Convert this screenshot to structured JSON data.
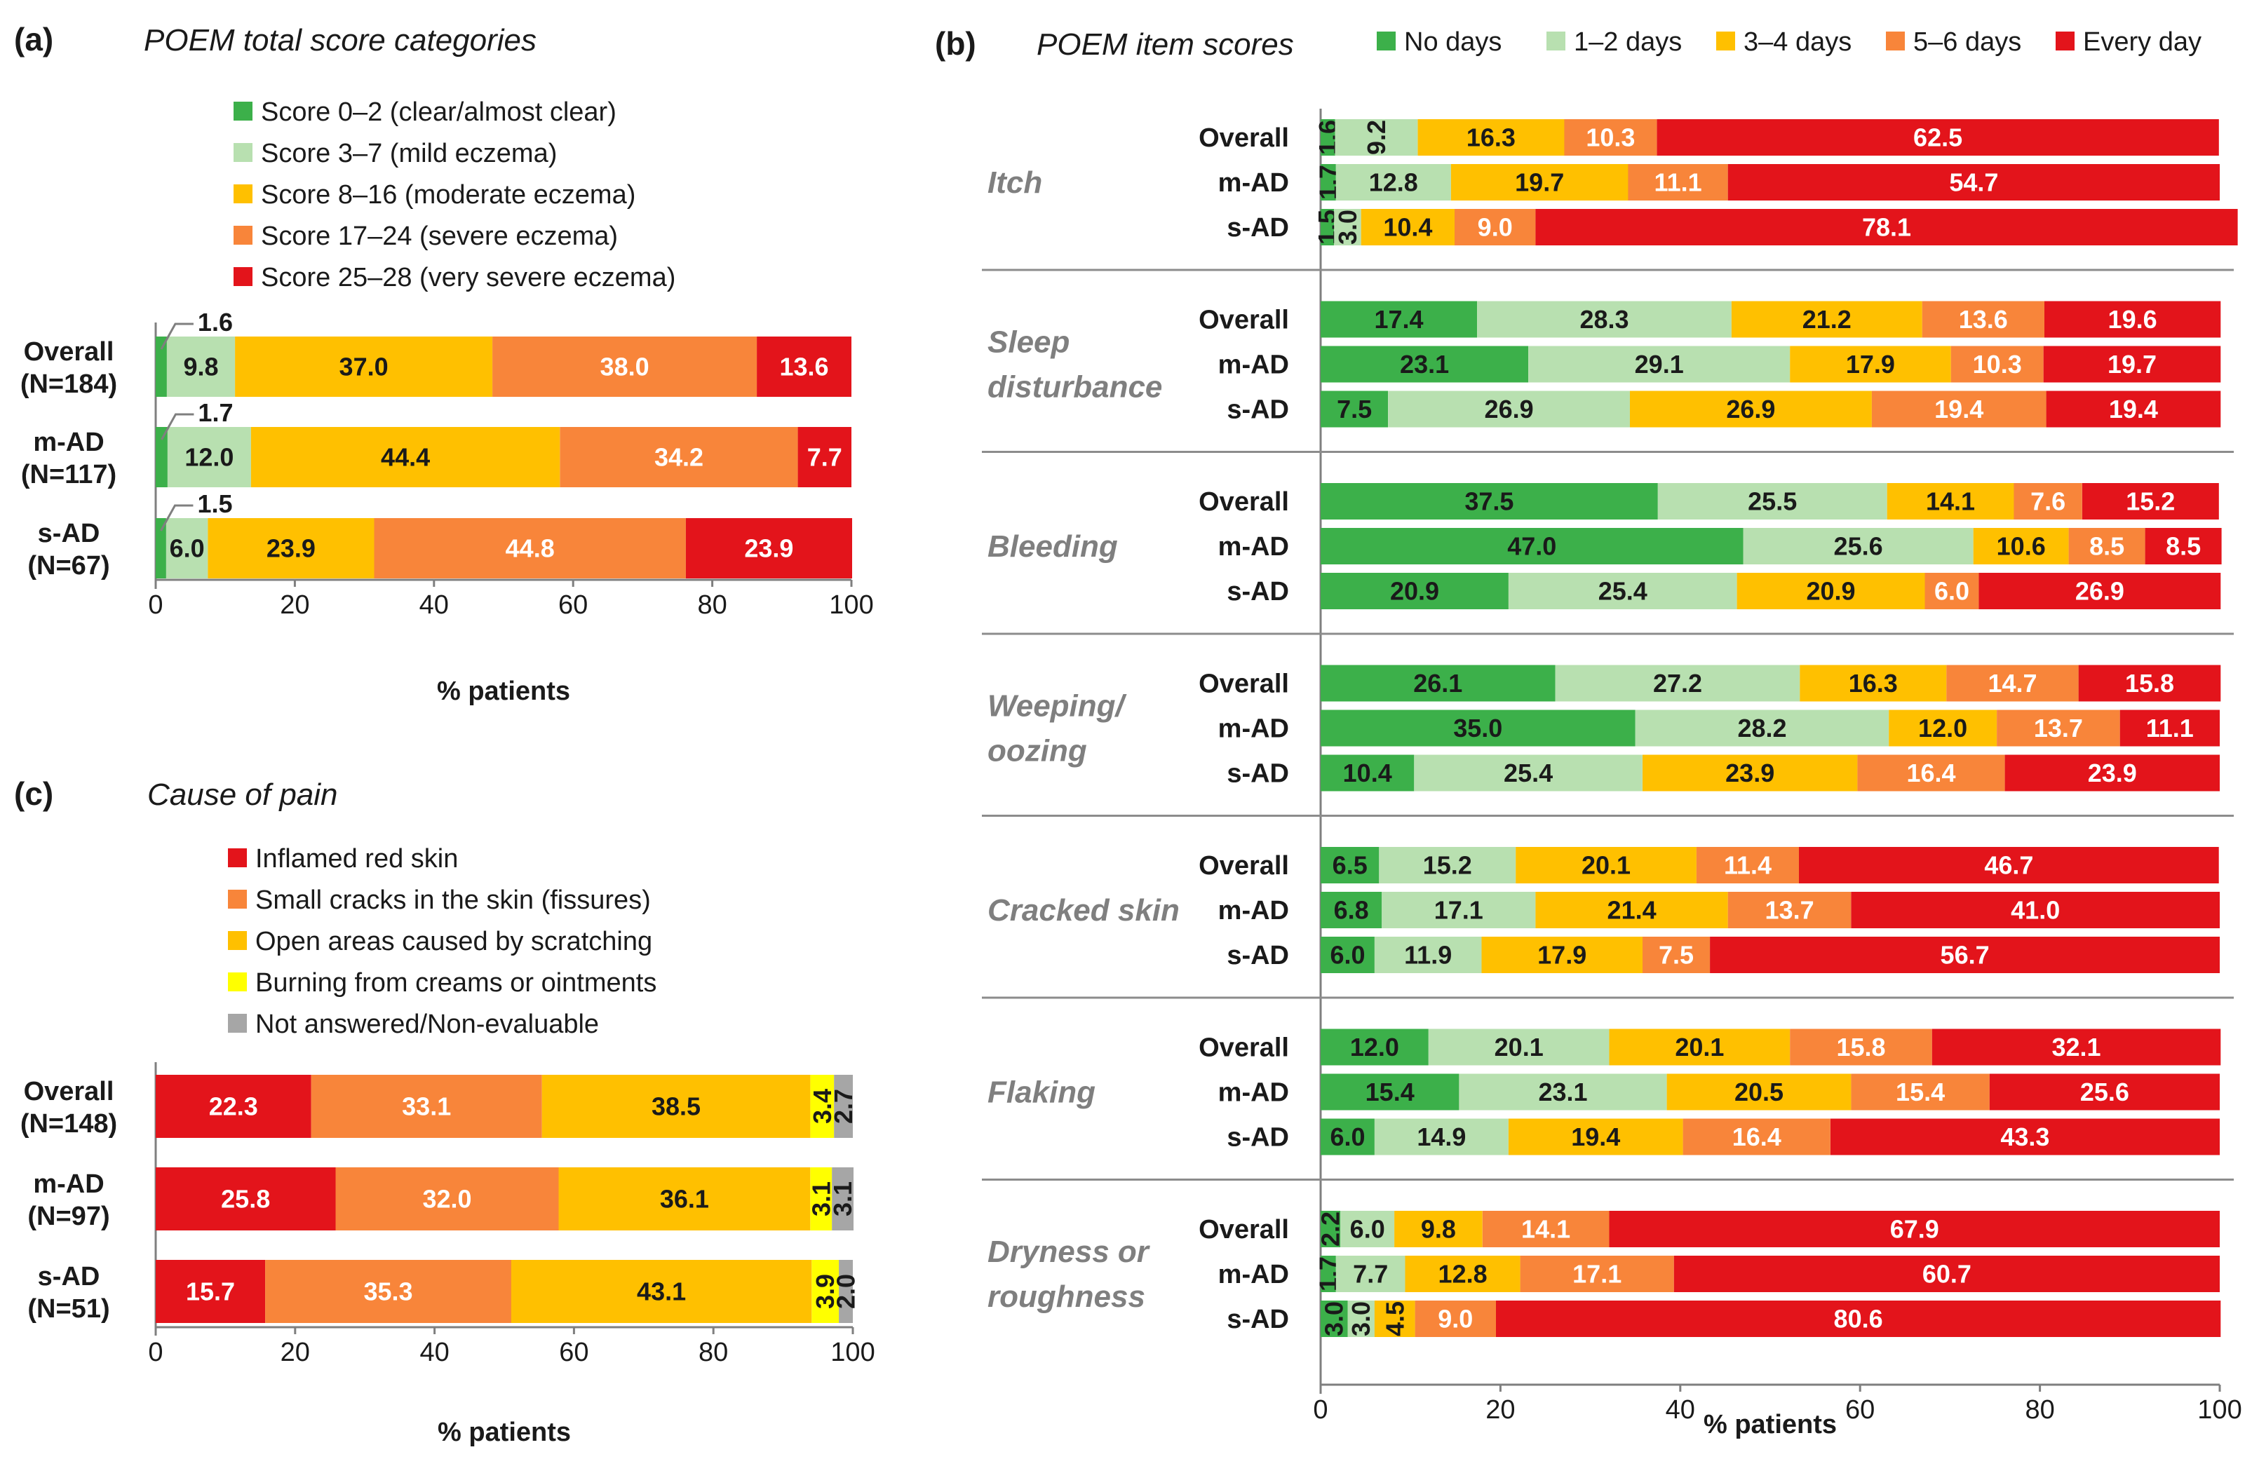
{
  "chart_data": [
    {
      "id": "a",
      "type": "bar",
      "orientation": "horizontal-stacked",
      "panel_label": "(a)",
      "title": "POEM total score categories",
      "xlabel": "% patients",
      "xlim": [
        0,
        100
      ],
      "xticks": [
        "0",
        "20",
        "40",
        "60",
        "80",
        "100"
      ],
      "legend": [
        "Score 0–2 (clear/almost clear)",
        "Score 3–7 (mild eczema)",
        "Score 8–16 (moderate eczema)",
        "Score 17–24 (severe eczema)",
        "Score 25–28 (very severe eczema)"
      ],
      "colors": [
        "#3cb04a",
        "#b8e0b0",
        "#ffc000",
        "#f8853a",
        "#e3141b"
      ],
      "text_colors": [
        "#1a1a1a",
        "#1a1a1a",
        "#1a1a1a",
        "#ffffff",
        "#ffffff"
      ],
      "rows": [
        {
          "label1": "Overall",
          "label2": "(N=184)",
          "values": [
            1.6,
            9.8,
            37.0,
            38.0,
            13.6
          ],
          "labels": [
            "1.6",
            "9.8",
            "37.0",
            "38.0",
            "13.6"
          ]
        },
        {
          "label1": "m-AD",
          "label2": "(N=117)",
          "values": [
            1.7,
            12.0,
            44.4,
            34.2,
            7.7
          ],
          "labels": [
            "1.7",
            "12.0",
            "44.4",
            "34.2",
            "7.7"
          ]
        },
        {
          "label1": "s-AD",
          "label2": "(N=67)",
          "values": [
            1.5,
            6.0,
            23.9,
            44.8,
            23.9
          ],
          "labels": [
            "1.5",
            "6.0",
            "23.9",
            "44.8",
            "23.9"
          ]
        }
      ]
    },
    {
      "id": "b",
      "type": "bar",
      "orientation": "horizontal-stacked",
      "panel_label": "(b)",
      "title": "POEM item scores",
      "xlabel": "% patients",
      "xlim": [
        0,
        100
      ],
      "xticks": [
        "0",
        "20",
        "40",
        "60",
        "80",
        "100"
      ],
      "legend": [
        "No days",
        "1–2 days",
        "3–4 days",
        "5–6 days",
        "Every day"
      ],
      "colors": [
        "#3cb04a",
        "#b8e0b0",
        "#ffc000",
        "#f8853a",
        "#e3141b"
      ],
      "text_colors": [
        "#1a1a1a",
        "#1a1a1a",
        "#1a1a1a",
        "#ffffff",
        "#ffffff"
      ],
      "groups": [
        {
          "name": [
            "Itch"
          ],
          "rows": [
            {
              "label": "Overall",
              "values": [
                1.6,
                9.2,
                16.3,
                10.3,
                62.5
              ],
              "labels": [
                "1.6",
                "9.2",
                "16.3",
                "10.3",
                "62.5"
              ]
            },
            {
              "label": "m-AD",
              "values": [
                1.7,
                12.8,
                19.7,
                11.1,
                54.7
              ],
              "labels": [
                "1.7",
                "12.8",
                "19.7",
                "11.1",
                "54.7"
              ]
            },
            {
              "label": "s-AD",
              "values": [
                1.5,
                3.0,
                10.4,
                9.0,
                78.1
              ],
              "labels": [
                "1.5",
                "3.0",
                "10.4",
                "9.0",
                "78.1"
              ]
            }
          ]
        },
        {
          "name": [
            "Sleep",
            "disturbance"
          ],
          "rows": [
            {
              "label": "Overall",
              "values": [
                17.4,
                28.3,
                21.2,
                13.6,
                19.6
              ],
              "labels": [
                "17.4",
                "28.3",
                "21.2",
                "13.6",
                "19.6"
              ]
            },
            {
              "label": "m-AD",
              "values": [
                23.1,
                29.1,
                17.9,
                10.3,
                19.7
              ],
              "labels": [
                "23.1",
                "29.1",
                "17.9",
                "10.3",
                "19.7"
              ]
            },
            {
              "label": "s-AD",
              "values": [
                7.5,
                26.9,
                26.9,
                19.4,
                19.4
              ],
              "labels": [
                "7.5",
                "26.9",
                "26.9",
                "19.4",
                "19.4"
              ]
            }
          ]
        },
        {
          "name": [
            "Bleeding"
          ],
          "rows": [
            {
              "label": "Overall",
              "values": [
                37.5,
                25.5,
                14.1,
                7.6,
                15.2
              ],
              "labels": [
                "37.5",
                "25.5",
                "14.1",
                "7.6",
                "15.2"
              ]
            },
            {
              "label": "m-AD",
              "values": [
                47.0,
                25.6,
                10.6,
                8.5,
                8.5
              ],
              "labels": [
                "47.0",
                "25.6",
                "10.6",
                "8.5",
                "8.5"
              ]
            },
            {
              "label": "s-AD",
              "values": [
                20.9,
                25.4,
                20.9,
                6.0,
                26.9
              ],
              "labels": [
                "20.9",
                "25.4",
                "20.9",
                "6.0",
                "26.9"
              ]
            }
          ]
        },
        {
          "name": [
            "Weeping/",
            "oozing"
          ],
          "rows": [
            {
              "label": "Overall",
              "values": [
                26.1,
                27.2,
                16.3,
                14.7,
                15.8
              ],
              "labels": [
                "26.1",
                "27.2",
                "16.3",
                "14.7",
                "15.8"
              ]
            },
            {
              "label": "m-AD",
              "values": [
                35.0,
                28.2,
                12.0,
                13.7,
                11.1
              ],
              "labels": [
                "35.0",
                "28.2",
                "12.0",
                "13.7",
                "11.1"
              ]
            },
            {
              "label": "s-AD",
              "values": [
                10.4,
                25.4,
                23.9,
                16.4,
                23.9
              ],
              "labels": [
                "10.4",
                "25.4",
                "23.9",
                "16.4",
                "23.9"
              ]
            }
          ]
        },
        {
          "name": [
            "Cracked skin"
          ],
          "rows": [
            {
              "label": "Overall",
              "values": [
                6.5,
                15.2,
                20.1,
                11.4,
                46.7
              ],
              "labels": [
                "6.5",
                "15.2",
                "20.1",
                "11.4",
                "46.7"
              ]
            },
            {
              "label": "m-AD",
              "values": [
                6.8,
                17.1,
                21.4,
                13.7,
                41.0
              ],
              "labels": [
                "6.8",
                "17.1",
                "21.4",
                "13.7",
                "41.0"
              ]
            },
            {
              "label": "s-AD",
              "values": [
                6.0,
                11.9,
                17.9,
                7.5,
                56.7
              ],
              "labels": [
                "6.0",
                "11.9",
                "17.9",
                "7.5",
                "56.7"
              ]
            }
          ]
        },
        {
          "name": [
            "Flaking"
          ],
          "rows": [
            {
              "label": "Overall",
              "values": [
                12.0,
                20.1,
                20.1,
                15.8,
                32.1
              ],
              "labels": [
                "12.0",
                "20.1",
                "20.1",
                "15.8",
                "32.1"
              ]
            },
            {
              "label": "m-AD",
              "values": [
                15.4,
                23.1,
                20.5,
                15.4,
                25.6
              ],
              "labels": [
                "15.4",
                "23.1",
                "20.5",
                "15.4",
                "25.6"
              ]
            },
            {
              "label": "s-AD",
              "values": [
                6.0,
                14.9,
                19.4,
                16.4,
                43.3
              ],
              "labels": [
                "6.0",
                "14.9",
                "19.4",
                "16.4",
                "43.3"
              ]
            }
          ]
        },
        {
          "name": [
            "Dryness or",
            "roughness"
          ],
          "rows": [
            {
              "label": "Overall",
              "values": [
                2.2,
                6.0,
                9.8,
                14.1,
                67.9
              ],
              "labels": [
                "2.2",
                "6.0",
                "9.8",
                "14.1",
                "67.9"
              ]
            },
            {
              "label": "m-AD",
              "values": [
                1.7,
                7.7,
                12.8,
                17.1,
                60.7
              ],
              "labels": [
                "1.7",
                "7.7",
                "12.8",
                "17.1",
                "60.7"
              ]
            },
            {
              "label": "s-AD",
              "values": [
                3.0,
                3.0,
                4.5,
                9.0,
                80.6
              ],
              "labels": [
                "3.0",
                "3.0",
                "4.5",
                "9.0",
                "80.6"
              ]
            }
          ]
        }
      ]
    },
    {
      "id": "c",
      "type": "bar",
      "orientation": "horizontal-stacked",
      "panel_label": "(c)",
      "title": "Cause of pain",
      "xlabel": "% patients",
      "xlim": [
        0,
        100
      ],
      "xticks": [
        "0",
        "20",
        "40",
        "60",
        "80",
        "100"
      ],
      "legend": [
        "Inflamed red skin",
        "Small cracks in the skin (fissures)",
        "Open areas caused by scratching",
        "Burning from creams or ointments",
        "Not answered/Non-evaluable"
      ],
      "colors": [
        "#e3141b",
        "#f8853a",
        "#ffc000",
        "#ffff00",
        "#a6a6a6"
      ],
      "text_colors": [
        "#ffffff",
        "#ffffff",
        "#1a1a1a",
        "#1a1a1a",
        "#1a1a1a"
      ],
      "rows": [
        {
          "label1": "Overall",
          "label2": "(N=148)",
          "values": [
            22.3,
            33.1,
            38.5,
            3.4,
            2.7
          ],
          "labels": [
            "22.3",
            "33.1",
            "38.5",
            "3.4",
            "2.7"
          ]
        },
        {
          "label1": "m-AD",
          "label2": "(N=97)",
          "values": [
            25.8,
            32.0,
            36.1,
            3.1,
            3.1
          ],
          "labels": [
            "25.8",
            "32.0",
            "36.1",
            "3.1",
            "3.1"
          ]
        },
        {
          "label1": "s-AD",
          "label2": "(N=51)",
          "values": [
            15.7,
            35.3,
            43.1,
            3.9,
            2.0
          ],
          "labels": [
            "15.7",
            "35.3",
            "43.1",
            "3.9",
            "2.0"
          ]
        }
      ]
    }
  ]
}
